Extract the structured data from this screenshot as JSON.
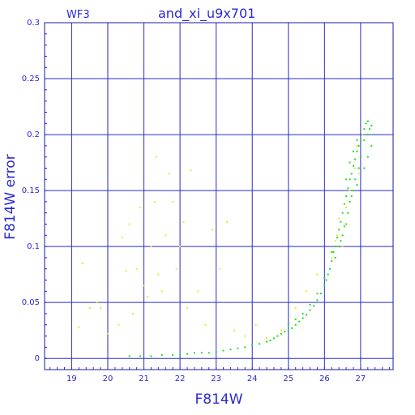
{
  "chart_data": {
    "type": "scatter",
    "title": "and_xi_u9x701",
    "subtitle": "WF3",
    "xlabel": "F814W",
    "ylabel": "F814W error",
    "xlim": [
      18.25,
      27.9
    ],
    "ylim": [
      -0.01,
      0.3
    ],
    "x_ticks": [
      "19",
      "20",
      "21",
      "22",
      "23",
      "24",
      "25",
      "26",
      "27"
    ],
    "y_ticks": [
      "0",
      "0.05",
      "0.1",
      "0.15",
      "0.2",
      "0.25",
      "0.3"
    ],
    "grid": true,
    "colors": {
      "frame": "#1a1aa8",
      "grid": "#2a2ad0",
      "green_points": "#22dd22",
      "yellow_points": "#e8e820"
    },
    "series": [
      {
        "color": "green",
        "points": [
          [
            20.6,
            0.002
          ],
          [
            20.9,
            0.002
          ],
          [
            21.2,
            0.002
          ],
          [
            21.5,
            0.003
          ],
          [
            21.8,
            0.003
          ],
          [
            22.0,
            0.003
          ],
          [
            22.2,
            0.004
          ],
          [
            22.4,
            0.005
          ],
          [
            22.6,
            0.005
          ],
          [
            22.8,
            0.005
          ],
          [
            23.0,
            0.006
          ],
          [
            23.2,
            0.007
          ],
          [
            23.4,
            0.008
          ],
          [
            23.6,
            0.009
          ],
          [
            23.8,
            0.01
          ],
          [
            24.0,
            0.012
          ],
          [
            24.2,
            0.013
          ],
          [
            24.4,
            0.015
          ],
          [
            24.5,
            0.016
          ],
          [
            24.6,
            0.018
          ],
          [
            24.7,
            0.02
          ],
          [
            24.8,
            0.022
          ],
          [
            24.9,
            0.024
          ],
          [
            25.0,
            0.025
          ],
          [
            25.1,
            0.027
          ],
          [
            25.2,
            0.03
          ],
          [
            25.3,
            0.033
          ],
          [
            25.4,
            0.036
          ],
          [
            25.5,
            0.039
          ],
          [
            25.6,
            0.043
          ],
          [
            25.7,
            0.047
          ],
          [
            25.8,
            0.052
          ],
          [
            25.9,
            0.058
          ],
          [
            26.0,
            0.065
          ],
          [
            26.05,
            0.07
          ],
          [
            26.1,
            0.075
          ],
          [
            26.15,
            0.08
          ],
          [
            26.2,
            0.087
          ],
          [
            26.25,
            0.095
          ],
          [
            26.3,
            0.1
          ],
          [
            26.35,
            0.108
          ],
          [
            26.4,
            0.115
          ],
          [
            26.45,
            0.122
          ],
          [
            26.5,
            0.13
          ],
          [
            26.55,
            0.138
          ],
          [
            26.6,
            0.145
          ],
          [
            26.65,
            0.152
          ],
          [
            26.7,
            0.16
          ],
          [
            26.75,
            0.165
          ],
          [
            26.8,
            0.172
          ],
          [
            26.85,
            0.178
          ],
          [
            26.9,
            0.185
          ],
          [
            26.95,
            0.19
          ],
          [
            27.0,
            0.195
          ],
          [
            27.05,
            0.2
          ],
          [
            27.1,
            0.205
          ],
          [
            27.15,
            0.21
          ],
          [
            27.2,
            0.212
          ],
          [
            27.3,
            0.208
          ],
          [
            27.35,
            0.2
          ],
          [
            27.3,
            0.19
          ],
          [
            27.2,
            0.18
          ],
          [
            27.1,
            0.17
          ],
          [
            26.7,
            0.14
          ],
          [
            26.8,
            0.15
          ],
          [
            26.9,
            0.155
          ],
          [
            26.6,
            0.12
          ],
          [
            26.5,
            0.11
          ],
          [
            26.4,
            0.1
          ],
          [
            26.3,
            0.09
          ],
          [
            27.0,
            0.18
          ],
          [
            26.95,
            0.17
          ],
          [
            26.85,
            0.16
          ],
          [
            26.75,
            0.145
          ],
          [
            26.65,
            0.13
          ],
          [
            26.55,
            0.118
          ],
          [
            26.45,
            0.105
          ],
          [
            27.1,
            0.195
          ],
          [
            27.2,
            0.2
          ],
          [
            27.25,
            0.205
          ],
          [
            26.6,
            0.16
          ],
          [
            26.7,
            0.175
          ],
          [
            26.8,
            0.185
          ],
          [
            26.9,
            0.195
          ],
          [
            25.0,
            0.03
          ],
          [
            25.2,
            0.035
          ],
          [
            25.4,
            0.04
          ],
          [
            25.6,
            0.048
          ],
          [
            25.8,
            0.058
          ],
          [
            26.0,
            0.072
          ],
          [
            26.2,
            0.095
          ]
        ]
      },
      {
        "color": "yellow",
        "points": [
          [
            19.2,
            0.028
          ],
          [
            19.3,
            0.085
          ],
          [
            19.5,
            0.045
          ],
          [
            19.7,
            0.05
          ],
          [
            19.8,
            0.045
          ],
          [
            20.0,
            0.022
          ],
          [
            20.3,
            0.03
          ],
          [
            20.4,
            0.108
          ],
          [
            20.5,
            0.078
          ],
          [
            20.6,
            0.12
          ],
          [
            20.7,
            0.04
          ],
          [
            20.8,
            0.08
          ],
          [
            20.9,
            0.135
          ],
          [
            21.0,
            0.065
          ],
          [
            21.1,
            0.055
          ],
          [
            21.2,
            0.1
          ],
          [
            21.3,
            0.14
          ],
          [
            21.35,
            0.18
          ],
          [
            21.4,
            0.075
          ],
          [
            21.5,
            0.06
          ],
          [
            21.6,
            0.11
          ],
          [
            21.7,
            0.165
          ],
          [
            21.8,
            0.14
          ],
          [
            21.9,
            0.08
          ],
          [
            22.0,
            0.1
          ],
          [
            22.1,
            0.122
          ],
          [
            22.2,
            0.045
          ],
          [
            22.3,
            0.168
          ],
          [
            22.5,
            0.06
          ],
          [
            22.7,
            0.03
          ],
          [
            22.9,
            0.115
          ],
          [
            23.1,
            0.08
          ],
          [
            23.3,
            0.122
          ],
          [
            23.5,
            0.025
          ],
          [
            23.8,
            0.02
          ],
          [
            24.1,
            0.03
          ],
          [
            24.4,
            0.018
          ],
          [
            24.8,
            0.025
          ],
          [
            25.2,
            0.045
          ],
          [
            25.5,
            0.06
          ],
          [
            25.8,
            0.075
          ],
          [
            26.2,
            0.09
          ],
          [
            26.35,
            0.11
          ],
          [
            26.5,
            0.1
          ],
          [
            26.7,
            0.15
          ],
          [
            26.85,
            0.17
          ],
          [
            26.95,
            0.165
          ],
          [
            27.05,
            0.2
          ],
          [
            26.4,
            0.125
          ],
          [
            26.6,
            0.135
          ],
          [
            26.9,
            0.19
          ],
          [
            26.3,
            0.105
          ]
        ]
      }
    ]
  }
}
